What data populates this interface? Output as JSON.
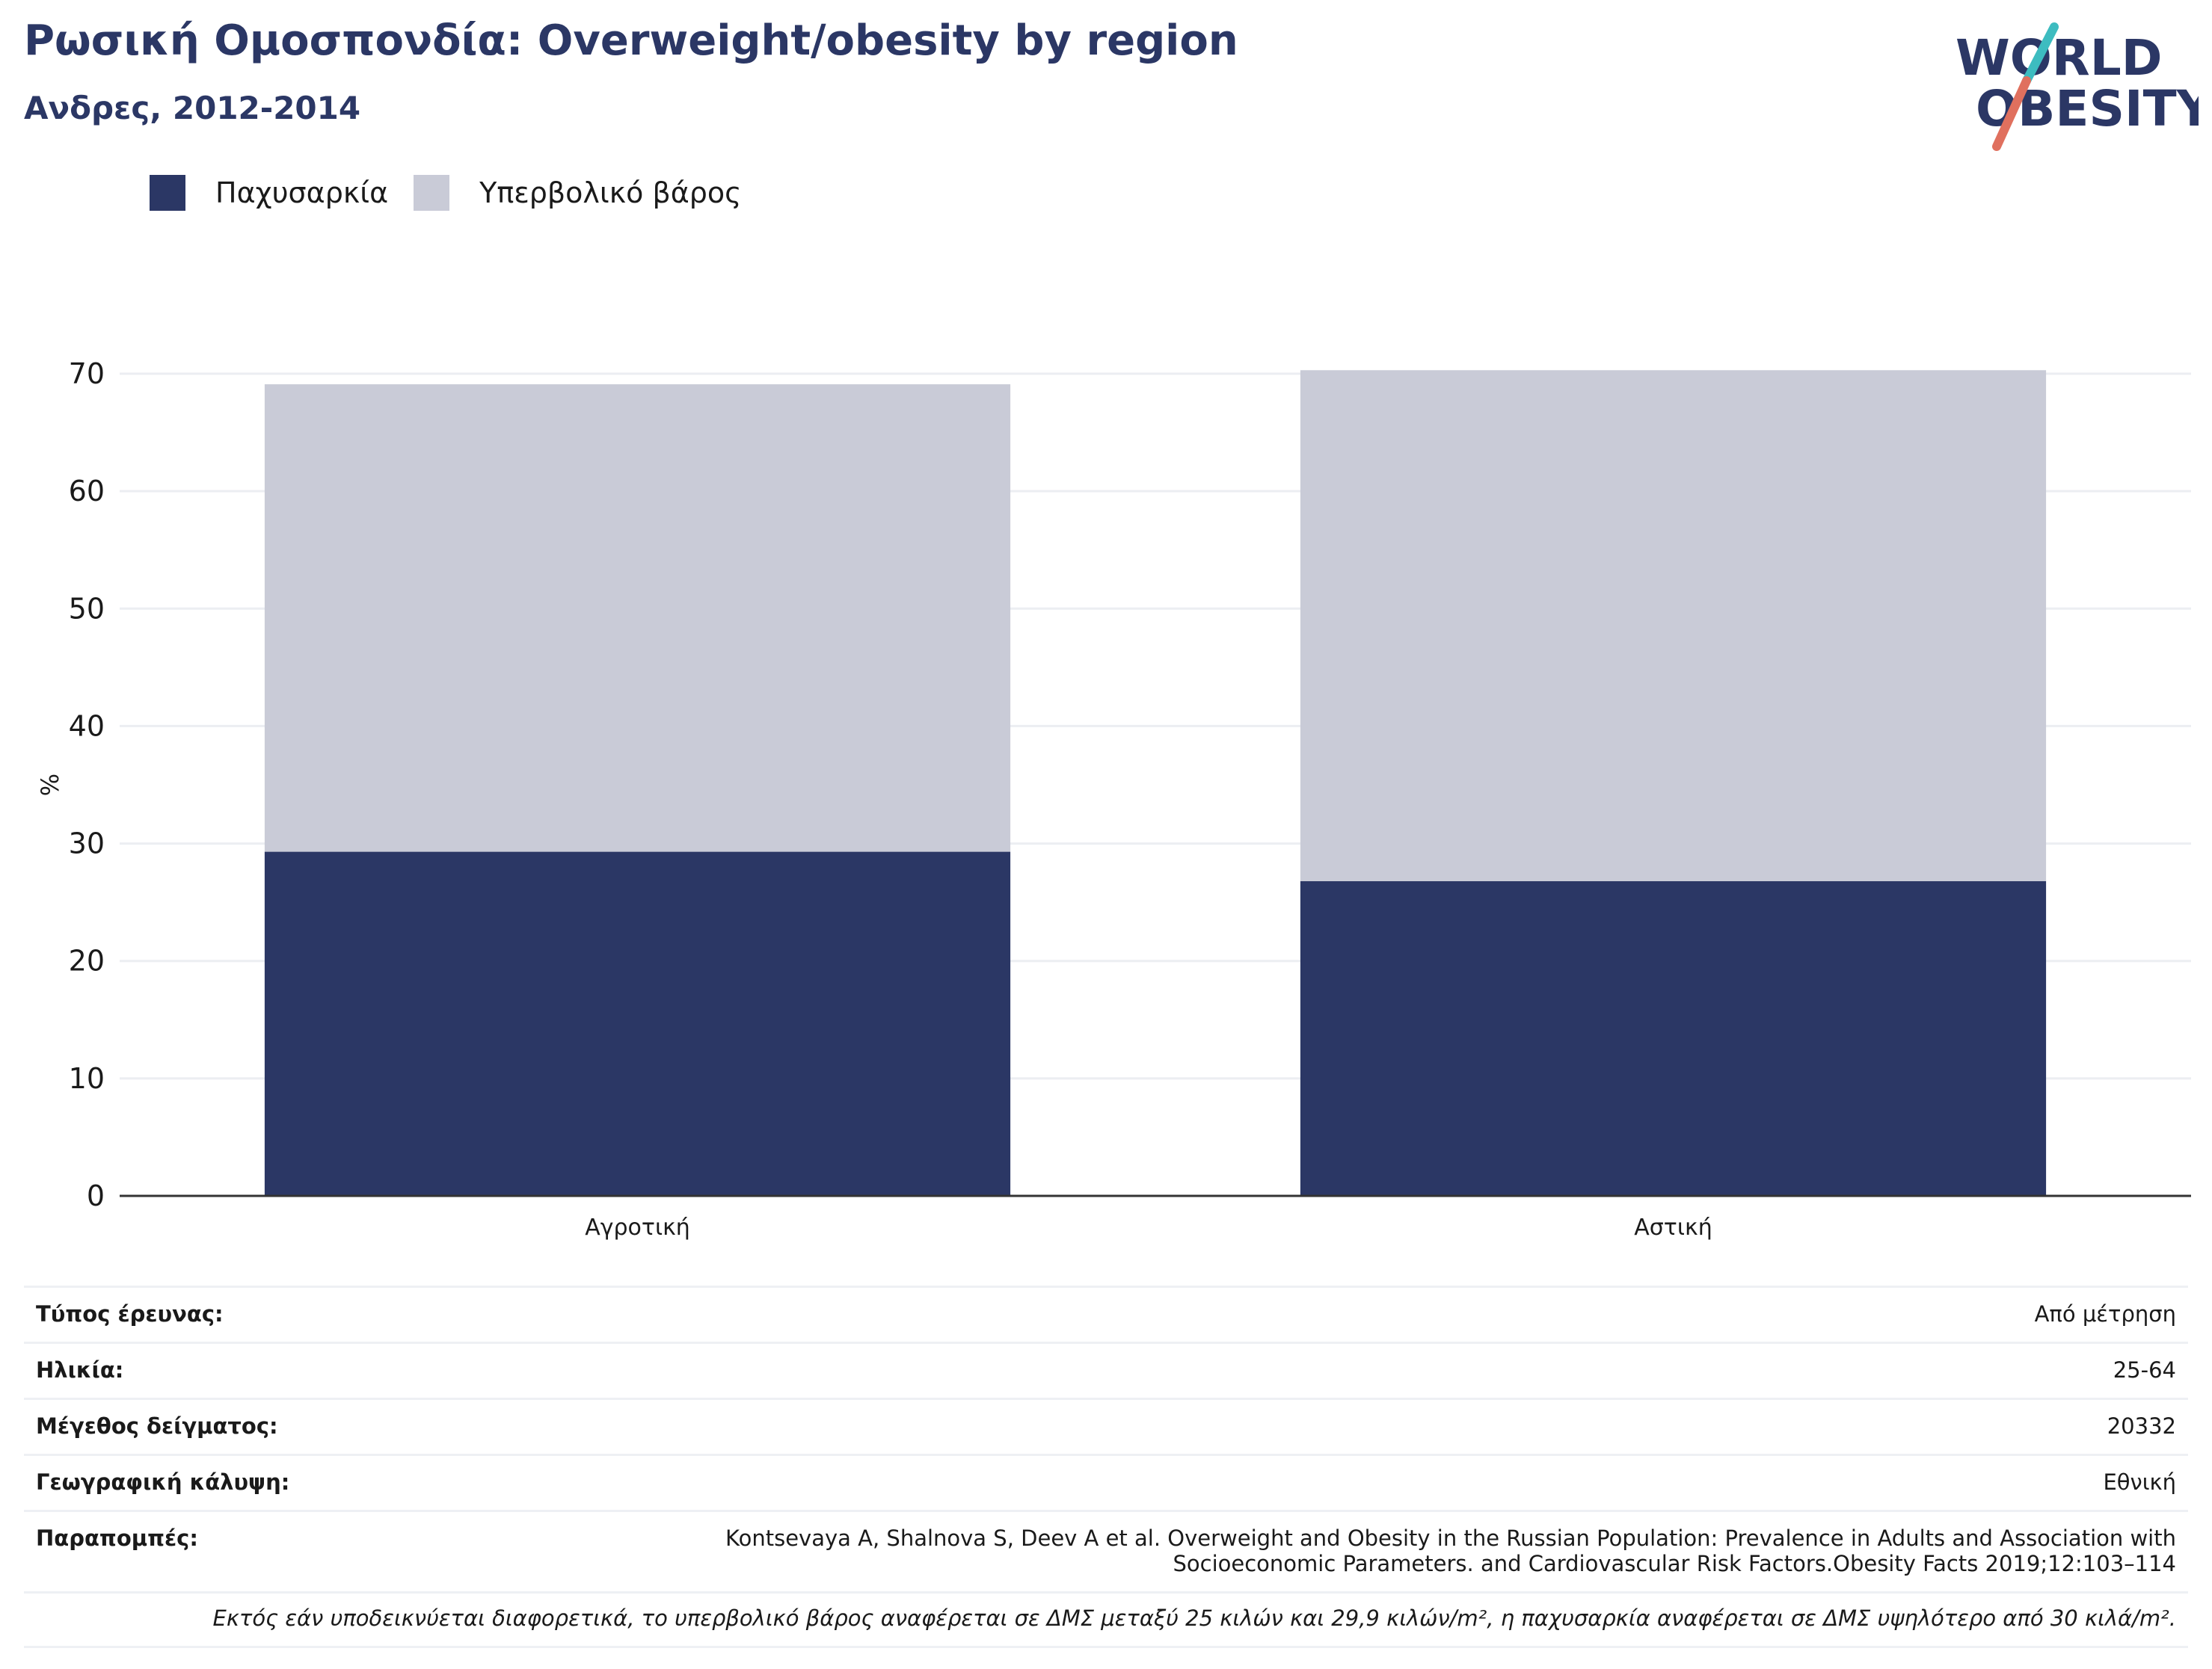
{
  "header": {
    "title": "Ρωσική Ομοσπονδία: Overweight/obesity by region",
    "subtitle": "Ανδρες, 2012-2014"
  },
  "logo": {
    "line1": "WORLD",
    "line2": "OBESITY"
  },
  "colors": {
    "obesity": "#2b3765",
    "overweight": "#c9cbd7",
    "title": "#2b3765",
    "logo_slash_top": "#3dbcc0",
    "logo_slash_bottom": "#e0705e",
    "gridline": "#eceef2",
    "axis": "#333333"
  },
  "legend": [
    {
      "label": "Παχυσαρκία",
      "color": "#2b3765"
    },
    {
      "label": "Υπερβολικό βάρος",
      "color": "#c9cbd7"
    }
  ],
  "chart_data": {
    "type": "bar",
    "stacked": true,
    "categories": [
      "Αγροτική",
      "Αστική"
    ],
    "series": [
      {
        "name": "Παχυσαρκία",
        "values": [
          29.3,
          26.8
        ]
      },
      {
        "name": "Υπερβολικό βάρος",
        "values": [
          39.8,
          43.5
        ]
      }
    ],
    "ylabel": "%",
    "ylim": [
      0,
      70
    ],
    "yticks": [
      0,
      10,
      20,
      30,
      40,
      50,
      60,
      70
    ],
    "grid": true,
    "legend_position": "top-left"
  },
  "info": {
    "rows": [
      {
        "key": "Τύπος έρευνας:",
        "value": "Από μέτρηση"
      },
      {
        "key": "Ηλικία:",
        "value": "25-64"
      },
      {
        "key": "Μέγεθος δείγματος:",
        "value": "20332"
      },
      {
        "key": "Γεωγραφική κάλυψη:",
        "value": "Εθνική"
      }
    ],
    "references_key": "Παραπομπές:",
    "references_line1": "Kontsevaya A, Shalnova S, Deev A et al. Overweight and Obesity in the Russian Population: Prevalence in Adults and Association with",
    "references_line2": "Socioeconomic Parameters. and Cardiovascular Risk Factors.Obesity Facts 2019;12:103–114",
    "note": "Εκτός εάν υποδεικνύεται διαφορετικά, το υπερβολικό βάρος αναφέρεται σε ΔΜΣ μεταξύ 25 κιλών και 29,9 κιλών/m², η παχυσαρκία αναφέρεται σε ΔΜΣ υψηλότερο από 30 κιλά/m²."
  }
}
